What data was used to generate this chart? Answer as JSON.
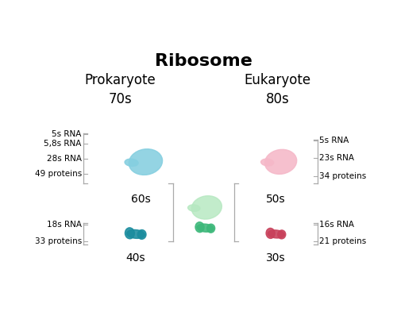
{
  "title": "Ribosome",
  "title_fontsize": 16,
  "title_fontweight": "bold",
  "background_color": "#ffffff",
  "prokaryote_label": "Prokaryote\n70s",
  "eukaryote_label": "Eukaryote\n80s",
  "header_fontsize": 12,
  "color_pro_large": "#85cfe0",
  "color_pro_small": "#1a8c9e",
  "color_euk_large": "#f5b8c8",
  "color_euk_small": "#c8405a",
  "color_comb_large": "#b5e8c0",
  "color_comb_small": "#3db87a",
  "annotation_fontsize": 7.5,
  "subunit_fontsize": 10,
  "label_color": "#333333"
}
